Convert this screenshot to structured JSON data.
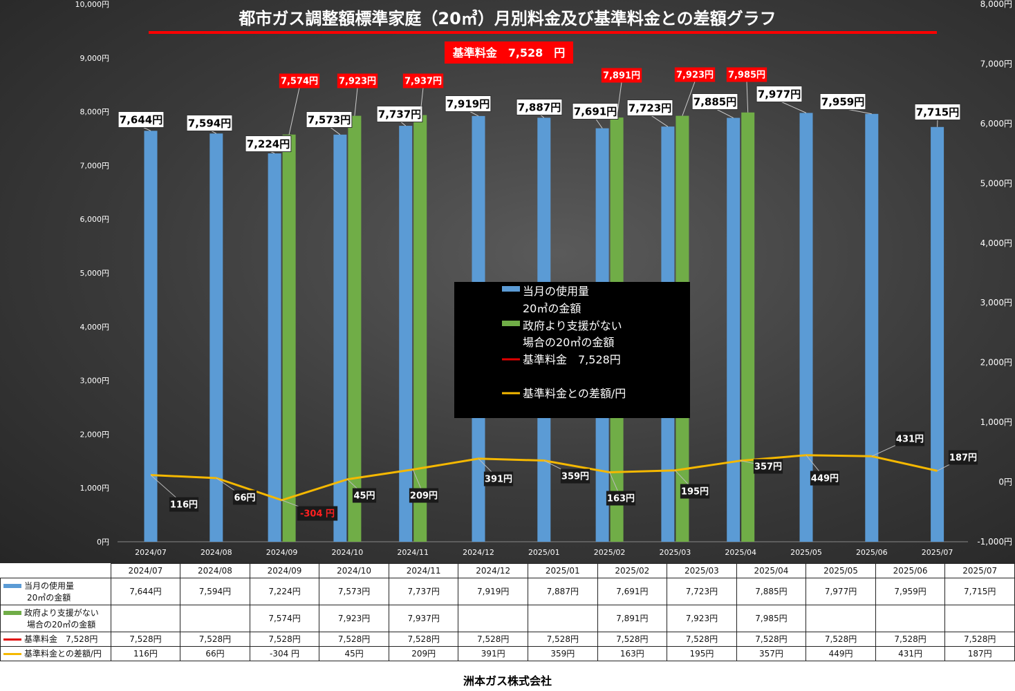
{
  "title": "都市ガス調整額標準家庭（20㎥）月別料金及び基準料金との差額グラフ",
  "base_badge": "基準料金　7,528　円",
  "footer": "洲本ガス株式会社",
  "colors": {
    "blue": "#5b9bd5",
    "green": "#70ad47",
    "red": "#e00000",
    "orange": "#f5b800"
  },
  "legend": {
    "s1_line1": "当月の使用量",
    "s1_line2": "20㎥の金額",
    "s2_line1": "政府より支援がない",
    "s2_line2": "場合の20㎥の金額",
    "s3": "基準料金　7,528円",
    "s4": "基準料金との差額/円"
  },
  "chart_data": {
    "type": "bar",
    "categories": [
      "2024/07",
      "2024/08",
      "2024/09",
      "2024/10",
      "2024/11",
      "2024/12",
      "2025/01",
      "2025/02",
      "2025/03",
      "2025/04",
      "2025/05",
      "2025/06",
      "2025/07"
    ],
    "y_left_ticks": [
      "10,000円",
      "9,000円",
      "8,000円",
      "7,000円",
      "6,000円",
      "5,000円",
      "4,000円",
      "3,000円",
      "2,000円",
      "1,000円",
      "0円"
    ],
    "y_right_ticks": [
      "8,000円",
      "7,000円",
      "6,000円",
      "5,000円",
      "4,000円",
      "3,000円",
      "2,000円",
      "1,000円",
      "0円",
      "-1,000円"
    ],
    "ylim_left": [
      0,
      10000
    ],
    "ylim_right": [
      -1000,
      8000
    ],
    "grid": false,
    "legend_position": "center",
    "series": [
      {
        "name": "当月の使用量20㎥の金額",
        "axis": "left",
        "values": [
          7644,
          7594,
          7224,
          7573,
          7737,
          7919,
          7887,
          7691,
          7723,
          7885,
          7977,
          7959,
          7715
        ],
        "labels": [
          "7,644円",
          "7,594円",
          "7,224円",
          "7,573円",
          "7,737円",
          "7,919円",
          "7,887円",
          "7,691円",
          "7,723円",
          "7,885円",
          "7,977円",
          "7,959円",
          "7,715円"
        ]
      },
      {
        "name": "政府より支援がない場合の20㎥の金額",
        "axis": "left",
        "values": [
          null,
          null,
          7574,
          7923,
          7937,
          null,
          null,
          7891,
          7923,
          7985,
          null,
          null,
          null
        ],
        "labels": [
          null,
          null,
          "7,574円",
          "7,923円",
          "7,937円",
          null,
          null,
          "7,891円",
          "7,923円",
          "7,985円",
          null,
          null,
          null
        ]
      },
      {
        "name": "基準料金　7,528円",
        "axis": "left",
        "values": [
          7528,
          7528,
          7528,
          7528,
          7528,
          7528,
          7528,
          7528,
          7528,
          7528,
          7528,
          7528,
          7528
        ],
        "labels": [
          "7,528円",
          "7,528円",
          "7,528円",
          "7,528円",
          "7,528円",
          "7,528円",
          "7,528円",
          "7,528円",
          "7,528円",
          "7,528円",
          "7,528円",
          "7,528円",
          "7,528円"
        ]
      },
      {
        "name": "基準料金との差額/円",
        "axis": "right",
        "values": [
          116,
          66,
          -304,
          45,
          209,
          391,
          359,
          163,
          195,
          357,
          449,
          431,
          187
        ],
        "labels": [
          "116円",
          "66円",
          "-304 円",
          "45円",
          "209円",
          "391円",
          "359円",
          "163円",
          "195円",
          "357円",
          "449円",
          "431円",
          "187円"
        ]
      }
    ]
  },
  "table": {
    "row1_label_line1": "当月の使用量",
    "row1_label_line2": "20㎥の金額",
    "row2_label_line1": "政府より支援がない",
    "row2_label_line2": "場合の20㎥の金額",
    "row3_label": "基準料金　7,528円",
    "row4_label": "基準料金との差額/円"
  }
}
